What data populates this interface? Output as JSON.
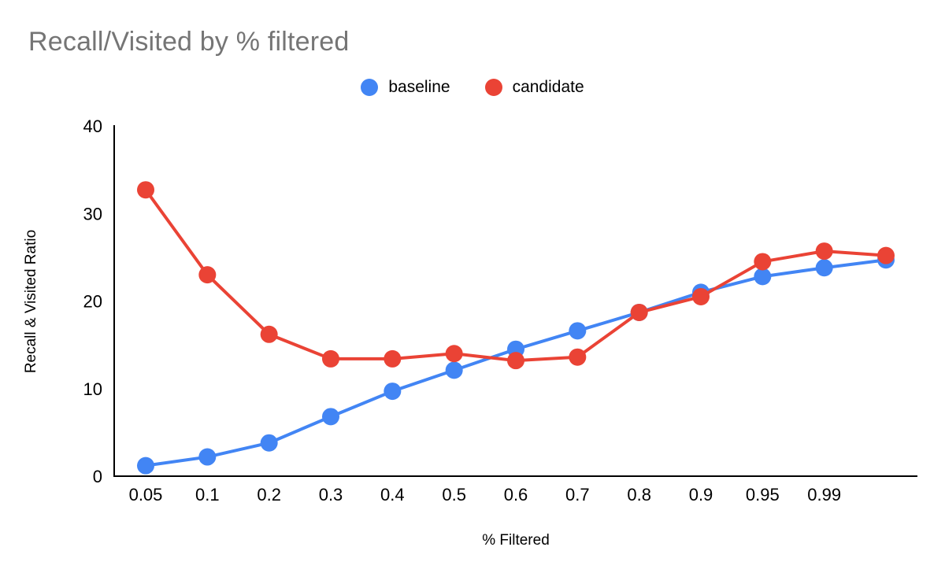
{
  "title": "Recall/Visited by % filtered",
  "chart_data": {
    "type": "line",
    "title": "Recall/Visited by % filtered",
    "xlabel": "% Filtered",
    "ylabel": "Recall & Visited Ratio",
    "categories": [
      "0.05",
      "0.1",
      "0.2",
      "0.3",
      "0.4",
      "0.5",
      "0.6",
      "0.7",
      "0.8",
      "0.9",
      "0.95",
      "0.99",
      ""
    ],
    "series": [
      {
        "name": "baseline",
        "color": "#4285F4",
        "values": [
          1.2,
          2.2,
          3.8,
          6.8,
          9.7,
          12.1,
          14.5,
          16.6,
          18.7,
          21.0,
          22.8,
          23.8,
          24.7
        ]
      },
      {
        "name": "candidate",
        "color": "#EA4335",
        "values": [
          32.7,
          23.0,
          16.2,
          13.4,
          13.4,
          14.0,
          13.2,
          13.6,
          18.7,
          20.5,
          24.5,
          25.7,
          25.2
        ]
      }
    ],
    "ylim": [
      0,
      40
    ],
    "y_ticks": [
      0,
      10,
      20,
      30,
      40
    ],
    "grid": false,
    "legend_position": "top",
    "axis_color": "#000000",
    "title_color": "#757575"
  }
}
